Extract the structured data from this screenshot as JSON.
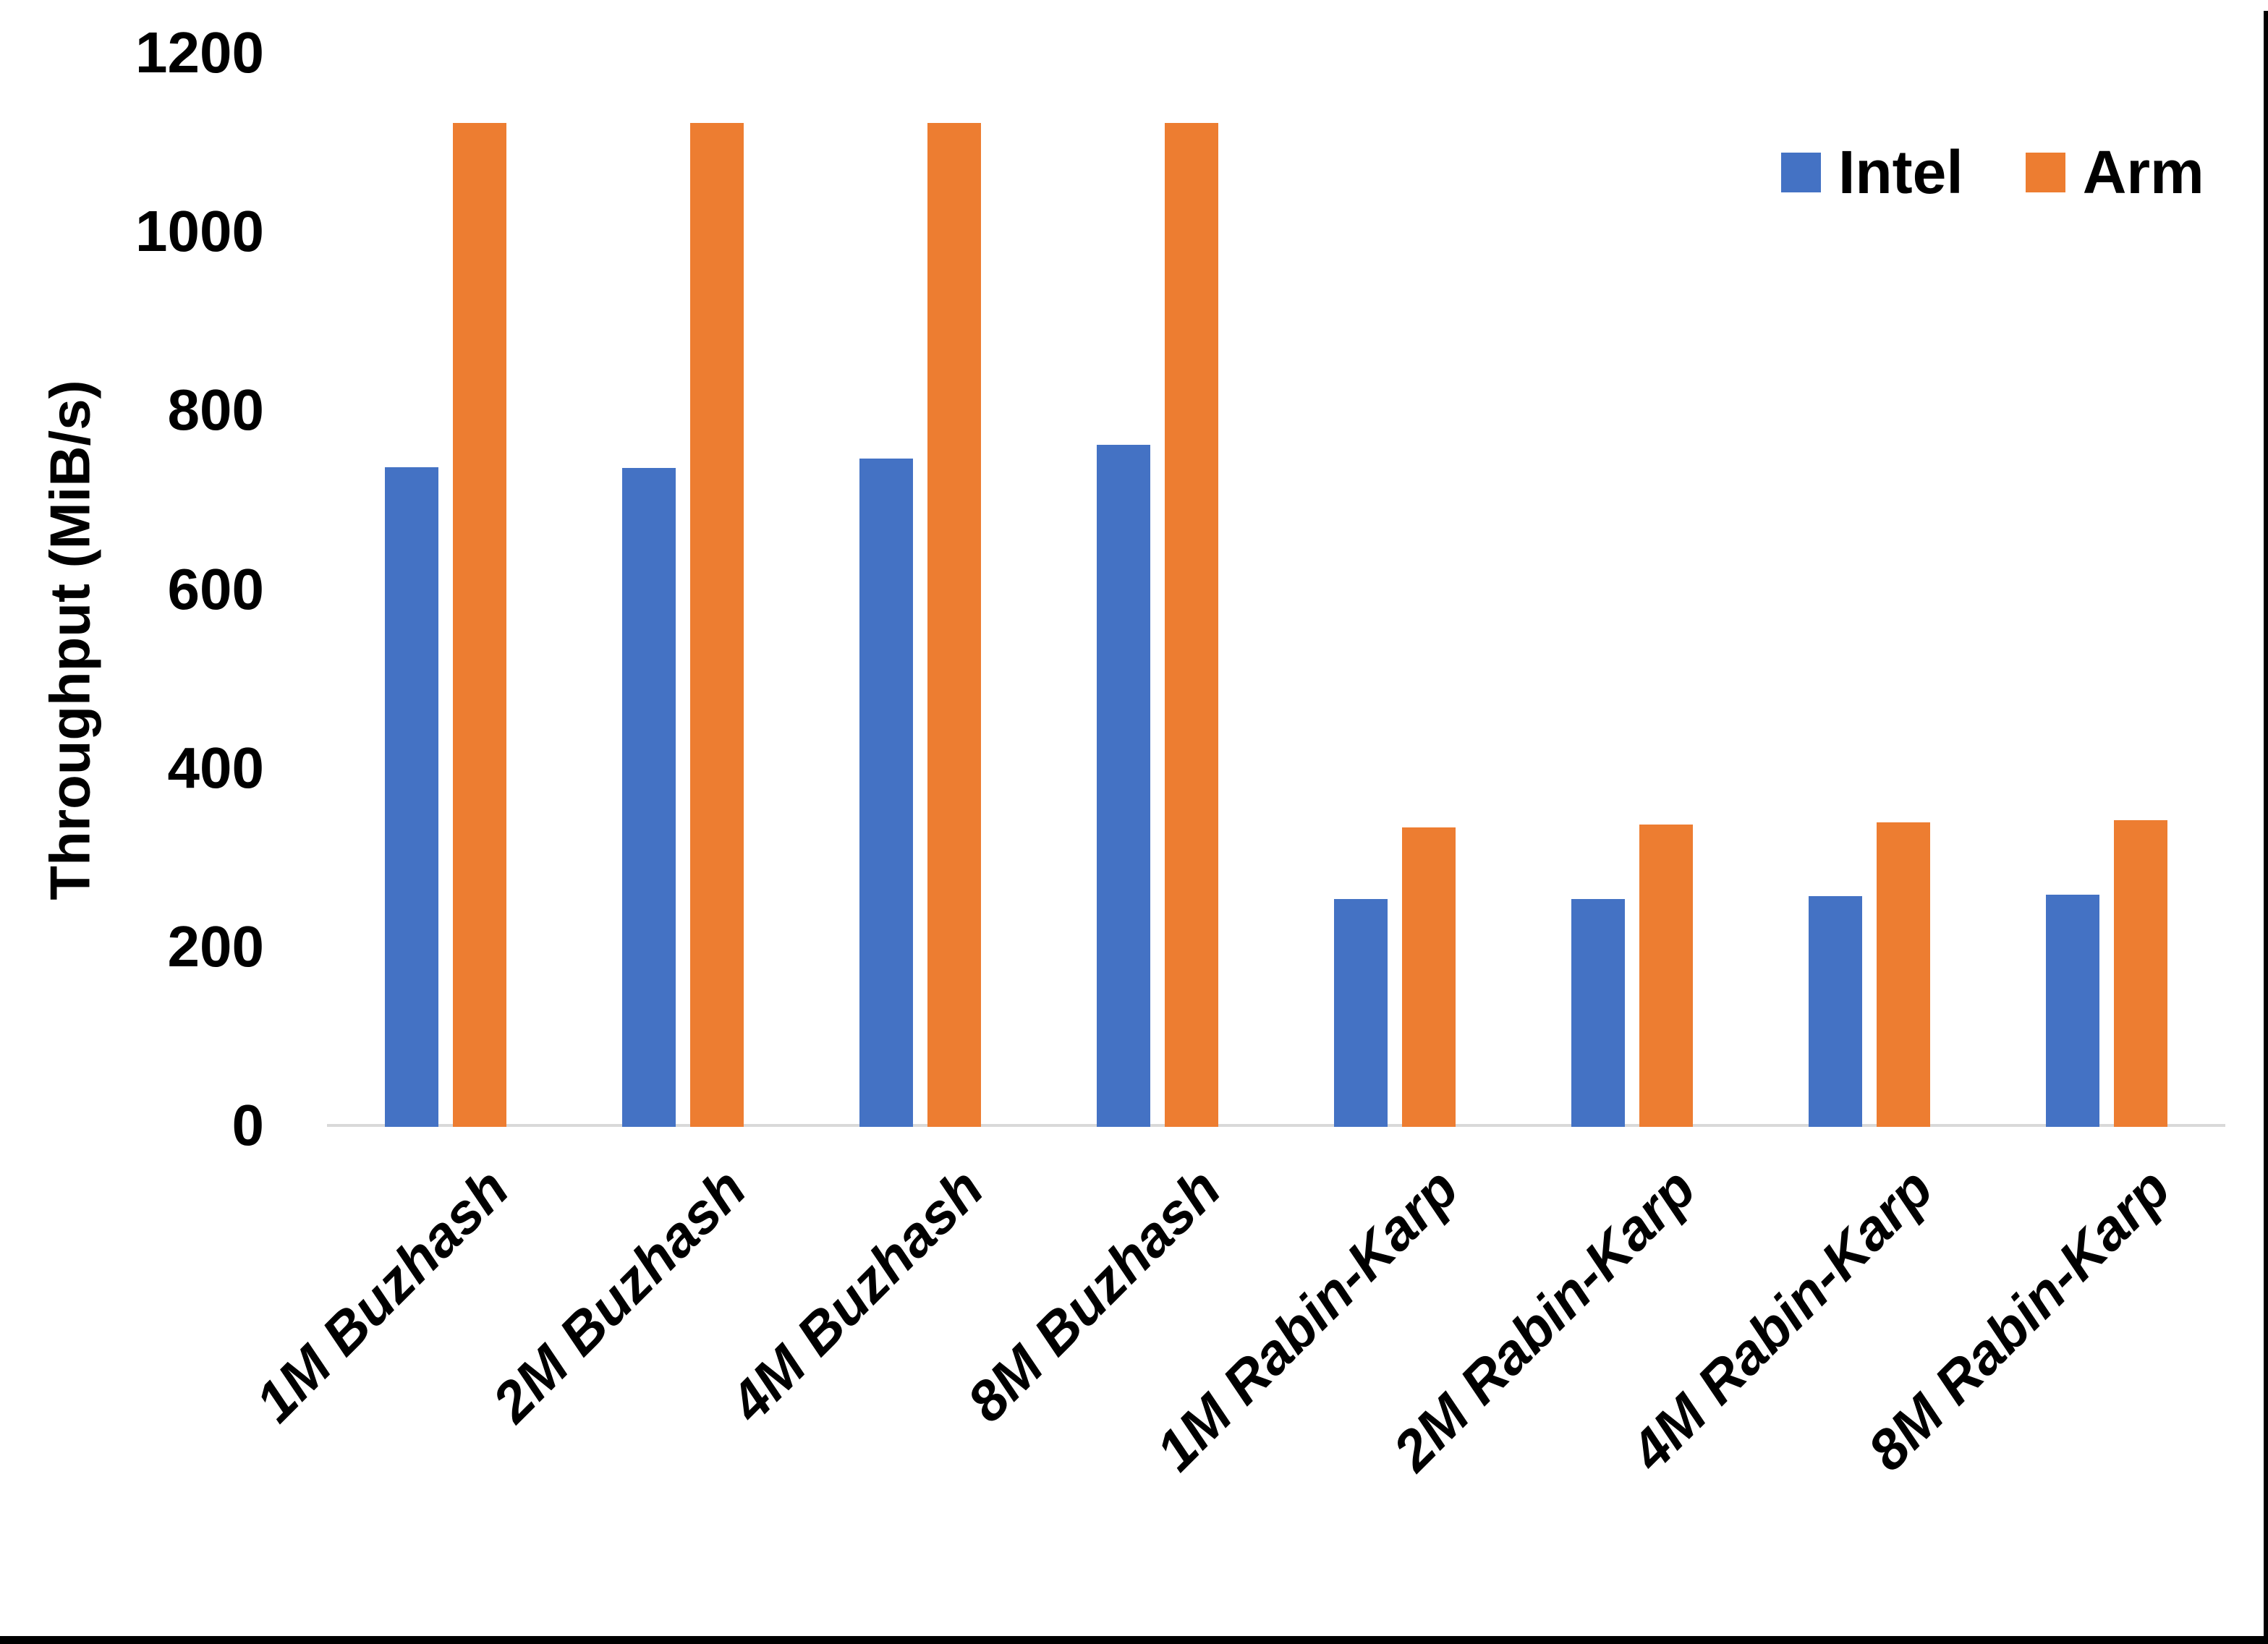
{
  "chart_data": {
    "type": "bar",
    "title": "",
    "xlabel": "",
    "ylabel": "Throughput (MiB/s)",
    "categories": [
      "1M Buzhash",
      "2M Buzhash",
      "4M Buzhash",
      "8M Buzhash",
      "1M Rabin-Karp",
      "2M Rabin-Karp",
      "4M Rabin-Karp",
      "8M Rabin-Karp"
    ],
    "series": [
      {
        "name": "Intel",
        "color": "#4472C4",
        "values": [
          738,
          737,
          748,
          763,
          255,
          255,
          258,
          260
        ]
      },
      {
        "name": "Arm",
        "color": "#ED7D31",
        "values": [
          1123,
          1123,
          1123,
          1123,
          335,
          338,
          341,
          343
        ]
      }
    ],
    "ylim": [
      0,
      1200
    ],
    "yticks": [
      0,
      200,
      400,
      600,
      800,
      1000,
      1200
    ],
    "grid": false,
    "legend_position": "top-right",
    "axis_line_color": "#D9D9D9",
    "text_color": "#000000",
    "background_color": "#FFFFFF"
  }
}
